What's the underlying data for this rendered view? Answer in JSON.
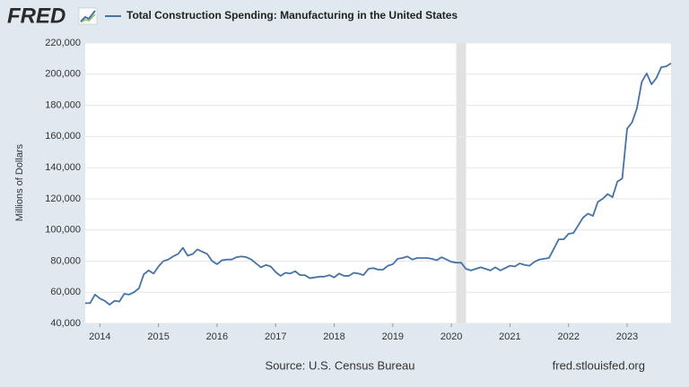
{
  "brand": "FRED",
  "source": "Source: U.S. Census Bureau",
  "site": "fred.stlouisfed.org",
  "chart_data": {
    "type": "line",
    "ylabel": "Millions of Dollars",
    "series": [
      {
        "name": "Total Construction Spending: Manufacturing in the United States",
        "color": "#4572a7",
        "values": [
          53000,
          53000,
          58500,
          56000,
          54500,
          52000,
          54500,
          54000,
          59000,
          58500,
          60000,
          62500,
          71500,
          74000,
          72000,
          76500,
          80000,
          81000,
          83000,
          84500,
          88500,
          83500,
          84500,
          87500,
          86000,
          84500,
          80000,
          78000,
          80500,
          81000,
          81000,
          82500,
          83000,
          82500,
          81000,
          78500,
          76000,
          77500,
          76500,
          73000,
          70500,
          72500,
          72000,
          73500,
          71000,
          71000,
          69000,
          69500,
          70000,
          70000,
          71000,
          69500,
          72000,
          70500,
          70500,
          72500,
          72000,
          71000,
          75000,
          75500,
          74500,
          74500,
          77000,
          78000,
          81500,
          82000,
          83000,
          81000,
          82000,
          82000,
          82000,
          81500,
          80500,
          82500,
          81000,
          79500,
          79000,
          79000,
          75000,
          74000,
          75000,
          76000,
          75000,
          74000,
          76000,
          74000,
          75500,
          77000,
          76500,
          78500,
          77500,
          77000,
          79500,
          81000,
          81500,
          82000,
          88000,
          94000,
          94000,
          97500,
          98000,
          103000,
          108000,
          110500,
          109000,
          118000,
          120000,
          123000,
          121000,
          131000,
          133000,
          165000,
          169000,
          178000,
          195000,
          200500,
          193500,
          197500,
          204500,
          205000,
          207000
        ]
      }
    ],
    "x": [
      "2013-10",
      "2013-11",
      "2013-12",
      "2014-01",
      "2014-02",
      "2014-03",
      "2014-04",
      "2014-05",
      "2014-06",
      "2014-07",
      "2014-08",
      "2014-09",
      "2014-10",
      "2014-11",
      "2014-12",
      "2015-01",
      "2015-02",
      "2015-03",
      "2015-04",
      "2015-05",
      "2015-06",
      "2015-07",
      "2015-08",
      "2015-09",
      "2015-10",
      "2015-11",
      "2015-12",
      "2016-01",
      "2016-02",
      "2016-03",
      "2016-04",
      "2016-05",
      "2016-06",
      "2016-07",
      "2016-08",
      "2016-09",
      "2016-10",
      "2016-11",
      "2016-12",
      "2017-01",
      "2017-02",
      "2017-03",
      "2017-04",
      "2017-05",
      "2017-06",
      "2017-07",
      "2017-08",
      "2017-09",
      "2017-10",
      "2017-11",
      "2017-12",
      "2018-01",
      "2018-02",
      "2018-03",
      "2018-04",
      "2018-05",
      "2018-06",
      "2018-07",
      "2018-08",
      "2018-09",
      "2018-10",
      "2018-11",
      "2018-12",
      "2019-01",
      "2019-02",
      "2019-03",
      "2019-04",
      "2019-05",
      "2019-06",
      "2019-07",
      "2019-08",
      "2019-09",
      "2019-10",
      "2019-11",
      "2019-12",
      "2020-01",
      "2020-02",
      "2020-03",
      "2020-04",
      "2020-05",
      "2020-06",
      "2020-07",
      "2020-08",
      "2020-09",
      "2020-10",
      "2020-11",
      "2020-12",
      "2021-01",
      "2021-02",
      "2021-03",
      "2021-04",
      "2021-05",
      "2021-06",
      "2021-07",
      "2021-08",
      "2021-09",
      "2021-10",
      "2021-11",
      "2021-12",
      "2022-01",
      "2022-02",
      "2022-03",
      "2022-04",
      "2022-05",
      "2022-06",
      "2022-07",
      "2022-08",
      "2022-09",
      "2022-10",
      "2022-11",
      "2022-12",
      "2023-01",
      "2023-02",
      "2023-03",
      "2023-04",
      "2023-05",
      "2023-06",
      "2023-07",
      "2023-08",
      "2023-09",
      "2023-10"
    ],
    "xlim": [
      "2013-10",
      "2023-10"
    ],
    "xticks": [
      {
        "value": "2014-01",
        "label": "2014"
      },
      {
        "value": "2015-01",
        "label": "2015"
      },
      {
        "value": "2016-01",
        "label": "2016"
      },
      {
        "value": "2017-01",
        "label": "2017"
      },
      {
        "value": "2018-01",
        "label": "2018"
      },
      {
        "value": "2019-01",
        "label": "2019"
      },
      {
        "value": "2020-01",
        "label": "2020"
      },
      {
        "value": "2021-01",
        "label": "2021"
      },
      {
        "value": "2022-01",
        "label": "2022"
      },
      {
        "value": "2023-01",
        "label": "2023"
      }
    ],
    "ylim": [
      40000,
      220000
    ],
    "yticks": [
      {
        "value": 40000,
        "label": "40,000"
      },
      {
        "value": 60000,
        "label": "60,000"
      },
      {
        "value": 80000,
        "label": "80,000"
      },
      {
        "value": 100000,
        "label": "100,000"
      },
      {
        "value": 120000,
        "label": "120,000"
      },
      {
        "value": 140000,
        "label": "140,000"
      },
      {
        "value": 160000,
        "label": "160,000"
      },
      {
        "value": 180000,
        "label": "180,000"
      },
      {
        "value": 200000,
        "label": "200,000"
      },
      {
        "value": 220000,
        "label": "220,000"
      }
    ],
    "grid": true,
    "recessions": [
      {
        "start": "2020-02",
        "end": "2020-04"
      }
    ],
    "recession_color": "#e1e1e1"
  }
}
